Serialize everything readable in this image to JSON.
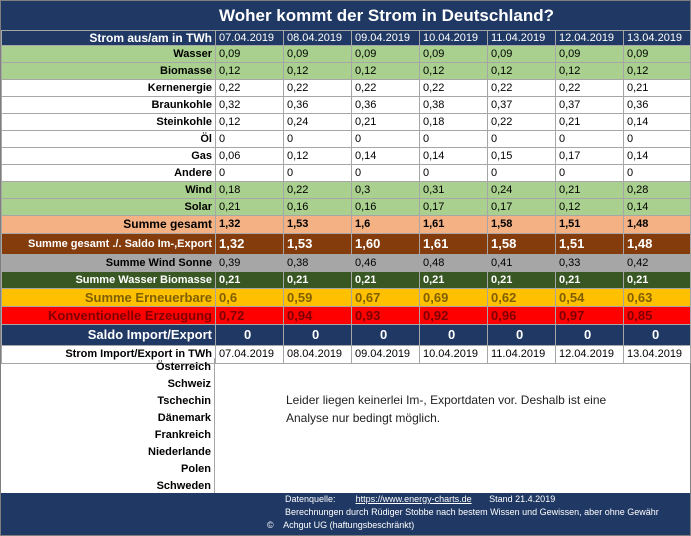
{
  "title": "Woher kommt der Strom in Deutschland?",
  "header": {
    "label": "Strom aus/am in TWh",
    "dates": [
      "07.04.2019",
      "08.04.2019",
      "09.04.2019",
      "10.04.2019",
      "11.04.2019",
      "12.04.2019",
      "13.04.2019"
    ]
  },
  "rows": {
    "wasser": {
      "label": "Wasser",
      "values": [
        "0,09",
        "0,09",
        "0,09",
        "0,09",
        "0,09",
        "0,09",
        "0,09"
      ]
    },
    "biomasse": {
      "label": "Biomasse",
      "values": [
        "0,12",
        "0,12",
        "0,12",
        "0,12",
        "0,12",
        "0,12",
        "0,12"
      ]
    },
    "kernenergie": {
      "label": "Kernenergie",
      "values": [
        "0,22",
        "0,22",
        "0,22",
        "0,22",
        "0,22",
        "0,22",
        "0,21"
      ]
    },
    "braunkohle": {
      "label": "Braunkohle",
      "values": [
        "0,32",
        "0,36",
        "0,36",
        "0,38",
        "0,37",
        "0,37",
        "0,36"
      ]
    },
    "steinkohle": {
      "label": "Steinkohle",
      "values": [
        "0,12",
        "0,24",
        "0,21",
        "0,18",
        "0,22",
        "0,21",
        "0,14"
      ]
    },
    "oel": {
      "label": "Öl",
      "values": [
        "0",
        "0",
        "0",
        "0",
        "0",
        "0",
        "0"
      ]
    },
    "gas": {
      "label": "Gas",
      "values": [
        "0,06",
        "0,12",
        "0,14",
        "0,14",
        "0,15",
        "0,17",
        "0,14"
      ]
    },
    "andere": {
      "label": "Andere",
      "values": [
        "0",
        "0",
        "0",
        "0",
        "0",
        "0",
        "0"
      ]
    },
    "wind": {
      "label": "Wind",
      "values": [
        "0,18",
        "0,22",
        "0,3",
        "0,31",
        "0,24",
        "0,21",
        "0,28"
      ]
    },
    "solar": {
      "label": "Solar",
      "values": [
        "0,21",
        "0,16",
        "0,16",
        "0,17",
        "0,17",
        "0,12",
        "0,14"
      ]
    },
    "summe_gesamt": {
      "label": "Summe gesamt",
      "values": [
        "1,32",
        "1,53",
        "1,6",
        "1,61",
        "1,58",
        "1,51",
        "1,48"
      ]
    },
    "summe_saldo": {
      "label": "Summe gesamt ./. Saldo Im-,Export",
      "values": [
        "1,32",
        "1,53",
        "1,60",
        "1,61",
        "1,58",
        "1,51",
        "1,48"
      ]
    },
    "summe_wind_sonne": {
      "label": "Summe Wind Sonne",
      "values": [
        "0,39",
        "0,38",
        "0,46",
        "0,48",
        "0,41",
        "0,33",
        "0,42"
      ]
    },
    "summe_wasser_biomasse": {
      "label": "Summe Wasser Biomasse",
      "values": [
        "0,21",
        "0,21",
        "0,21",
        "0,21",
        "0,21",
        "0,21",
        "0,21"
      ]
    },
    "summe_erneuerbare": {
      "label": "Summe Erneuerbare",
      "values": [
        "0,6",
        "0,59",
        "0,67",
        "0,69",
        "0,62",
        "0,54",
        "0,63"
      ]
    },
    "konventionelle": {
      "label": "Konventionelle Erzeugung",
      "values": [
        "0,72",
        "0,94",
        "0,93",
        "0,92",
        "0,96",
        "0,97",
        "0,85"
      ]
    },
    "saldo_ie": {
      "label": "Saldo Import/Export",
      "values": [
        "0",
        "0",
        "0",
        "0",
        "0",
        "0",
        "0"
      ]
    }
  },
  "import_export": {
    "label": "Strom Import/Export in TWh",
    "dates": [
      "07.04.2019",
      "08.04.2019",
      "09.04.2019",
      "10.04.2019",
      "11.04.2019",
      "12.04.2019",
      "13.04.2019"
    ],
    "countries": [
      "Österreich",
      "Schweiz",
      "Tschechin",
      "Dänemark",
      "Frankreich",
      "Niederlande",
      "Polen",
      "Schweden"
    ],
    "notice_line1": "Leider liegen keinerlei Im-, Exportdaten vor. Deshalb ist eine",
    "notice_line2": "Analyse nur bedingt möglich."
  },
  "footer": {
    "source_label": "Datenquelle:",
    "source_url": "https://www.energy-charts.de",
    "stand": "Stand  21.4.2019",
    "disclaimer": "Berechnungen durch Rüdiger Stobbe nach bestem Wissen und Gewissen, aber ohne Gewähr",
    "copyright_symbol": "©",
    "company": "Achgut UG (haftungsbeschränkt)"
  }
}
